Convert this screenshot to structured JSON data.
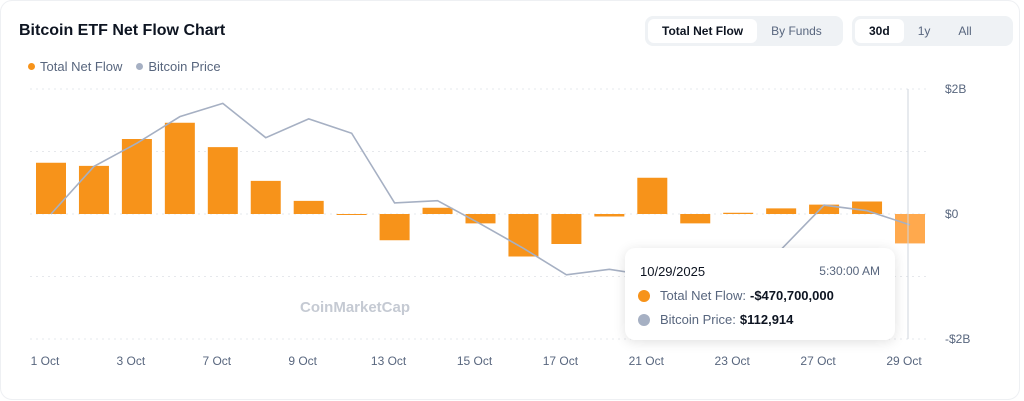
{
  "title": "Bitcoin ETF Net Flow Chart",
  "view_toggle": [
    {
      "label": "Total Net Flow",
      "active": true
    },
    {
      "label": "By Funds",
      "active": false
    }
  ],
  "range_toggle": [
    {
      "label": "30d",
      "active": true
    },
    {
      "label": "1y",
      "active": false
    },
    {
      "label": "All",
      "active": false
    }
  ],
  "watermark": "CoinMarketCap",
  "tooltip": {
    "date": "10/29/2025",
    "time": "5:30:00 AM",
    "flow_label": "Total Net Flow:",
    "flow_value": "-$470,700,000",
    "price_label": "Bitcoin Price:",
    "price_value": "$112,914"
  },
  "colors": {
    "flow": "#f7931a",
    "flow_highlight": "#ffa94d",
    "price": "#a6b0c3"
  },
  "chart_data": {
    "type": "bar",
    "title": "Bitcoin ETF Net Flow Chart",
    "categories": [
      "1 Oct",
      "2 Oct",
      "3 Oct",
      "6 Oct",
      "7 Oct",
      "8 Oct",
      "9 Oct",
      "10 Oct",
      "13 Oct",
      "14 Oct",
      "15 Oct",
      "16 Oct",
      "17 Oct",
      "20 Oct",
      "21 Oct",
      "22 Oct",
      "23 Oct",
      "24 Oct",
      "27 Oct",
      "28 Oct",
      "29 Oct"
    ],
    "x_tick_labels": [
      "1 Oct",
      "3 Oct",
      "7 Oct",
      "9 Oct",
      "13 Oct",
      "15 Oct",
      "17 Oct",
      "21 Oct",
      "23 Oct",
      "27 Oct",
      "29 Oct"
    ],
    "series": [
      {
        "name": "Total Net Flow",
        "unit": "USD billions",
        "type": "bar",
        "values": [
          0.82,
          0.77,
          1.2,
          1.46,
          1.07,
          0.53,
          0.21,
          -0.005,
          -0.42,
          0.1,
          -0.15,
          -0.68,
          -0.48,
          -0.04,
          0.58,
          -0.15,
          0.02,
          0.09,
          0.15,
          0.2,
          -0.4707
        ]
      },
      {
        "name": "Bitcoin Price",
        "unit": "USD",
        "type": "line",
        "values": [
          113900,
          118200,
          120300,
          122700,
          123900,
          120800,
          122500,
          121200,
          114900,
          115100,
          113000,
          110800,
          108400,
          108900,
          108300,
          107600,
          110100,
          110700,
          114700,
          114200,
          112914
        ]
      }
    ],
    "y_ticks": [
      "$2B",
      "$0",
      "-$2B"
    ],
    "ylim": [
      -2,
      2
    ],
    "price_range": [
      102600,
      125200
    ],
    "highlighted": "29 Oct",
    "legend": "top-left",
    "grid": true
  }
}
